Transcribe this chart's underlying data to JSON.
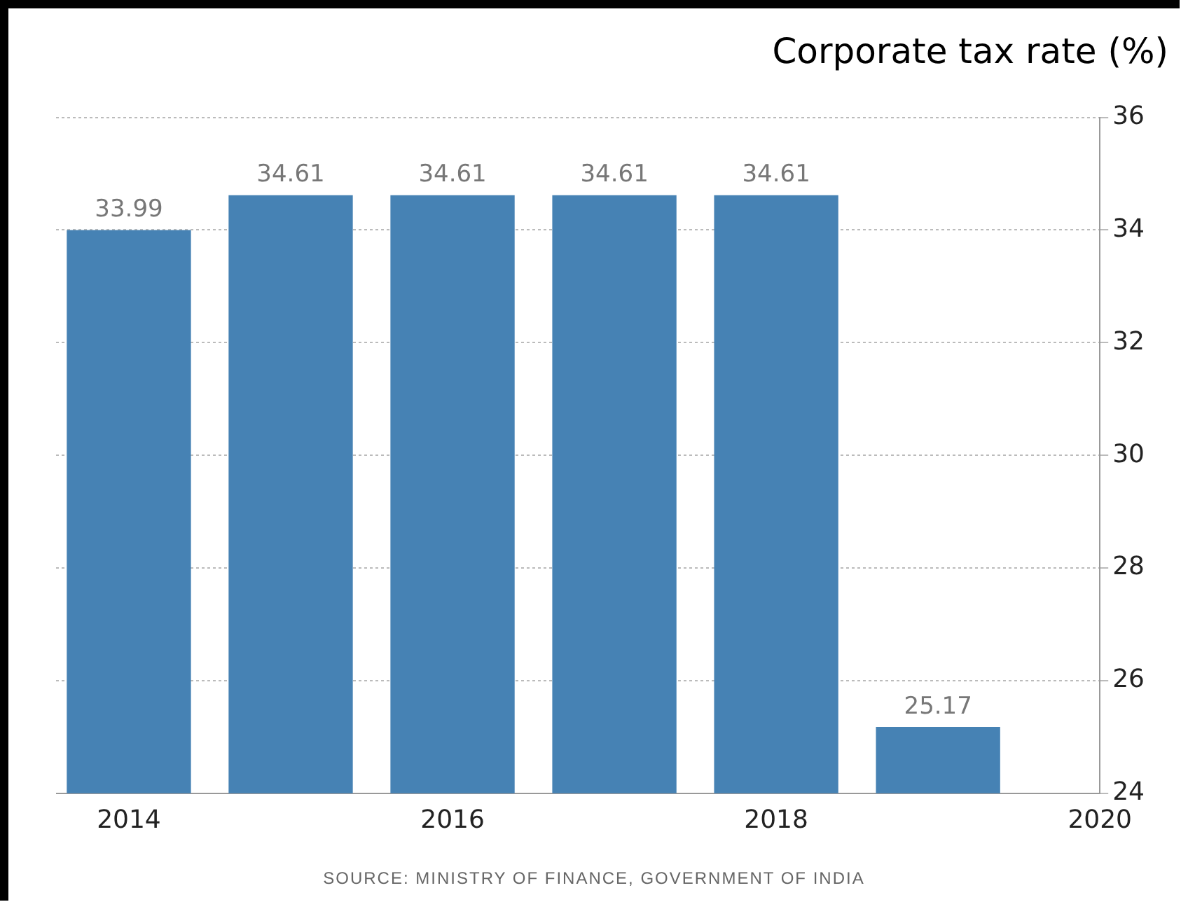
{
  "chart_data": {
    "type": "bar",
    "title": "Corporate tax rate (%)",
    "x": [
      2014,
      2015,
      2016,
      2017,
      2018,
      2019
    ],
    "values": [
      33.99,
      34.61,
      34.61,
      34.61,
      34.61,
      25.17
    ],
    "color": "#4682b4",
    "xlim": [
      2013.55,
      2020
    ],
    "xticks": [
      2014,
      2016,
      2018,
      2020
    ],
    "ylim": [
      24,
      36
    ],
    "yticks": [
      24,
      26,
      28,
      30,
      32,
      34,
      36
    ],
    "grid": "y",
    "data_labels": true,
    "legend": false,
    "annotations": [
      "SOURCE: MINISTRY OF FINANCE, GOVERNMENT OF INDIA"
    ]
  }
}
